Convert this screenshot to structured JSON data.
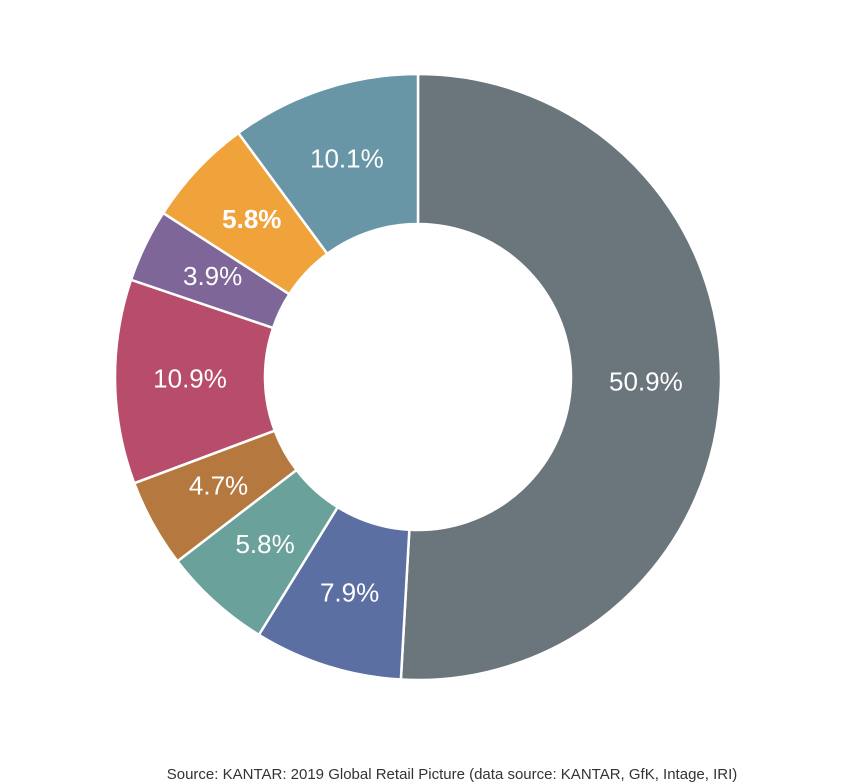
{
  "chart_data": {
    "type": "donut",
    "values": [
      50.9,
      7.9,
      5.8,
      4.7,
      10.9,
      3.9,
      5.8,
      10.1
    ],
    "value_labels": [
      "50.9%",
      "7.9%",
      "5.8%",
      "4.7%",
      "10.9%",
      "3.9%",
      "5.8%",
      "10.1%"
    ],
    "colors": [
      "#6b757c",
      "#5b6fa3",
      "#6aa19a",
      "#b5793f",
      "#b84d6b",
      "#7e6699",
      "#f0a33a",
      "#6996a6"
    ],
    "source": "Source: KANTAR: 2019 Global Retail Picture  (data source: KANTAR, GfK, Intage, IRI)"
  }
}
